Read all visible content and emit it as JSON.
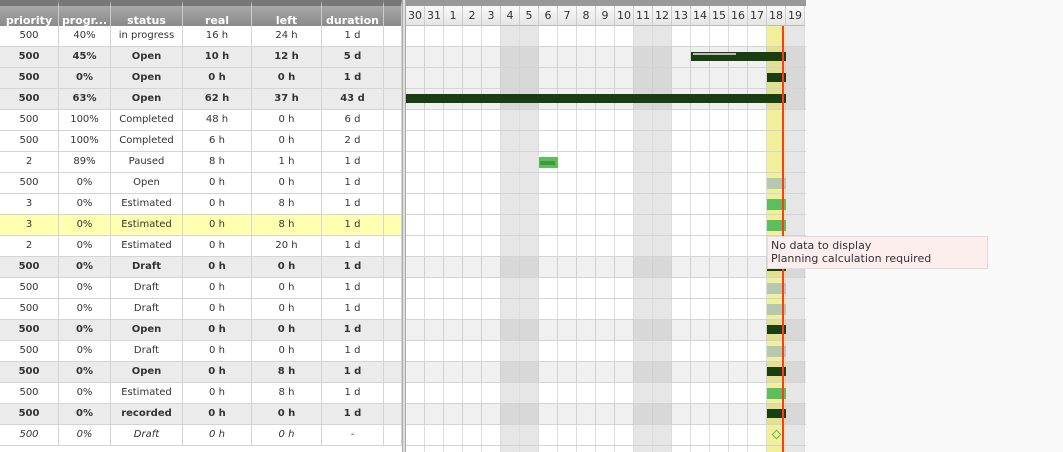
{
  "columns": [
    {
      "key": "priority",
      "label": "priority"
    },
    {
      "key": "progress",
      "label": "progr..."
    },
    {
      "key": "status",
      "label": "status"
    },
    {
      "key": "real",
      "label": "real"
    },
    {
      "key": "left",
      "label": "left"
    },
    {
      "key": "duration",
      "label": "duration"
    }
  ],
  "rows": [
    {
      "priority": "500",
      "progress": "40%",
      "status": "in progress",
      "real": "16 h",
      "left": "24 h",
      "duration": "1 d",
      "style": "",
      "bar": null
    },
    {
      "priority": "500",
      "progress": "45%",
      "status": "Open",
      "real": "10 h",
      "left": "12 h",
      "duration": "5 d",
      "style": "sum",
      "bar": {
        "type": "summary",
        "from": "14",
        "to": "18",
        "progress": 45
      }
    },
    {
      "priority": "500",
      "progress": "0%",
      "status": "Open",
      "real": "0 h",
      "left": "0 h",
      "duration": "1 d",
      "style": "sum",
      "bar": {
        "type": "summary",
        "from": "18",
        "to": "18"
      }
    },
    {
      "priority": "500",
      "progress": "63%",
      "status": "Open",
      "real": "62 h",
      "left": "37 h",
      "duration": "43 d",
      "style": "sum",
      "bar": {
        "type": "summary",
        "from": "30",
        "to": "18"
      }
    },
    {
      "priority": "500",
      "progress": "100%",
      "status": "Completed",
      "real": "48 h",
      "left": "0 h",
      "duration": "6 d",
      "style": "",
      "bar": null
    },
    {
      "priority": "500",
      "progress": "100%",
      "status": "Completed",
      "real": "6 h",
      "left": "0 h",
      "duration": "2 d",
      "style": "",
      "bar": null
    },
    {
      "priority": "2",
      "progress": "89%",
      "status": "Paused",
      "real": "8 h",
      "left": "1 h",
      "duration": "1 d",
      "style": "",
      "bar": {
        "type": "task",
        "from": "6",
        "to": "6",
        "progress": 89
      }
    },
    {
      "priority": "500",
      "progress": "0%",
      "status": "Open",
      "real": "0 h",
      "left": "0 h",
      "duration": "1 d",
      "style": "",
      "bar": {
        "type": "pending",
        "from": "18",
        "to": "18"
      }
    },
    {
      "priority": "3",
      "progress": "0%",
      "status": "Estimated",
      "real": "0 h",
      "left": "8 h",
      "duration": "1 d",
      "style": "",
      "bar": {
        "type": "task",
        "from": "18",
        "to": "18"
      }
    },
    {
      "priority": "3",
      "progress": "0%",
      "status": "Estimated",
      "real": "0 h",
      "left": "8 h",
      "duration": "1 d",
      "style": "sel",
      "bar": {
        "type": "task",
        "from": "18",
        "to": "18"
      }
    },
    {
      "priority": "2",
      "progress": "0%",
      "status": "Estimated",
      "real": "0 h",
      "left": "20 h",
      "duration": "1 d",
      "style": "",
      "bar": null
    },
    {
      "priority": "500",
      "progress": "0%",
      "status": "Draft",
      "real": "0 h",
      "left": "0 h",
      "duration": "1 d",
      "style": "sum",
      "bar": {
        "type": "summary",
        "from": "18",
        "to": "18"
      }
    },
    {
      "priority": "500",
      "progress": "0%",
      "status": "Draft",
      "real": "0 h",
      "left": "0 h",
      "duration": "1 d",
      "style": "",
      "bar": {
        "type": "pending",
        "from": "18",
        "to": "18"
      }
    },
    {
      "priority": "500",
      "progress": "0%",
      "status": "Draft",
      "real": "0 h",
      "left": "0 h",
      "duration": "1 d",
      "style": "",
      "bar": {
        "type": "pending",
        "from": "18",
        "to": "18"
      }
    },
    {
      "priority": "500",
      "progress": "0%",
      "status": "Open",
      "real": "0 h",
      "left": "0 h",
      "duration": "1 d",
      "style": "sum",
      "bar": {
        "type": "summary",
        "from": "18",
        "to": "18"
      }
    },
    {
      "priority": "500",
      "progress": "0%",
      "status": "Draft",
      "real": "0 h",
      "left": "0 h",
      "duration": "1 d",
      "style": "",
      "bar": {
        "type": "pending",
        "from": "18",
        "to": "18"
      }
    },
    {
      "priority": "500",
      "progress": "0%",
      "status": "Open",
      "real": "0 h",
      "left": "8 h",
      "duration": "1 d",
      "style": "sum",
      "bar": {
        "type": "summary",
        "from": "18",
        "to": "18"
      }
    },
    {
      "priority": "500",
      "progress": "0%",
      "status": "Estimated",
      "real": "0 h",
      "left": "8 h",
      "duration": "1 d",
      "style": "",
      "bar": {
        "type": "task",
        "from": "18",
        "to": "18"
      }
    },
    {
      "priority": "500",
      "progress": "0%",
      "status": "recorded",
      "real": "0 h",
      "left": "0 h",
      "duration": "1 d",
      "style": "sum",
      "bar": {
        "type": "summary",
        "from": "18",
        "to": "18"
      }
    },
    {
      "priority": "500",
      "progress": "0%",
      "status": "Draft",
      "real": "0 h",
      "left": "0 h",
      "duration": "-",
      "style": "it",
      "bar": {
        "type": "milestone",
        "from": "18",
        "to": "18"
      }
    }
  ],
  "gantt": {
    "days": [
      "30",
      "31",
      "1",
      "2",
      "3",
      "4",
      "5",
      "6",
      "7",
      "8",
      "9",
      "10",
      "11",
      "12",
      "13",
      "14",
      "15",
      "16",
      "17",
      "18",
      "19"
    ],
    "weekends": [
      "4",
      "5",
      "11",
      "12",
      "19"
    ],
    "today": "18",
    "colors": {
      "summary": "#1a3d12",
      "task": "#5cbf5c",
      "pending": "#b5c9b0",
      "today": "#f2ef9a",
      "todayLine": "#ff3b1f"
    }
  },
  "tooltip": {
    "line1": "No data to display",
    "line2": "Planning calculation required"
  }
}
